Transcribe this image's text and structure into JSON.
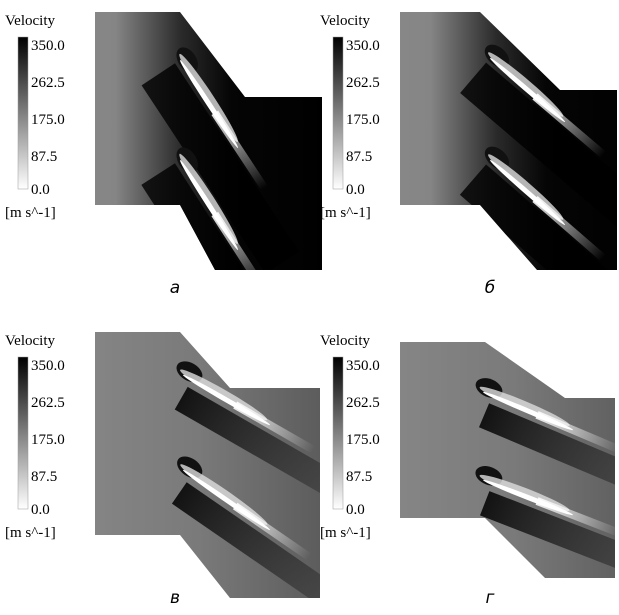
{
  "panels": [
    {
      "legend": {
        "title": "Velocity",
        "ticks": [
          "350.0",
          "262.5",
          "175.0",
          "87.5",
          "0.0"
        ],
        "unit": "[m s^-1]"
      },
      "caption": "а"
    },
    {
      "legend": {
        "title": "Velocity",
        "ticks": [
          "350.0",
          "262.5",
          "175.0",
          "87.5",
          "0.0"
        ],
        "unit": "[m s^-1]"
      },
      "caption": "б"
    },
    {
      "legend": {
        "title": "Velocity",
        "ticks": [
          "350.0",
          "262.5",
          "175.0",
          "87.5",
          "0.0"
        ],
        "unit": "[m s^-1]"
      },
      "caption": "в"
    },
    {
      "legend": {
        "title": "Velocity",
        "ticks": [
          "350.0",
          "262.5",
          "175.0",
          "87.5",
          "0.0"
        ],
        "unit": "[m s^-1]"
      },
      "caption": "г"
    }
  ]
}
